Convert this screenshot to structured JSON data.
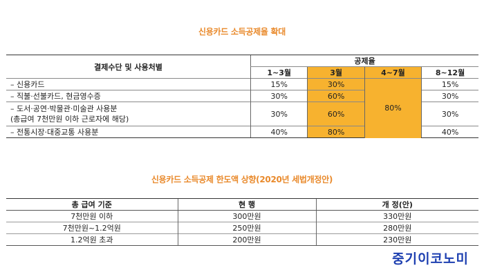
{
  "table1": {
    "title": "신용카드 소득공제율 확대",
    "header_left": "결제수단 및 사용처별",
    "header_group": "공제율",
    "periods": [
      "1~3월",
      "3월",
      "4~7월",
      "8~12월"
    ],
    "merged_rate_4_7": "80%",
    "rows": [
      {
        "label": "– 신용카드",
        "v1": "15%",
        "v2": "30%",
        "v4": "15%"
      },
      {
        "label": "– 직불·선불카드, 현금영수증",
        "v1": "30%",
        "v2": "60%",
        "v4": "30%"
      },
      {
        "label": "– 도서·공연·박물관·미술관 사용분",
        "label2": "(총급여 7천만원 이하 근로자에 해당)",
        "v1": "30%",
        "v2": "60%",
        "v4": "30%"
      },
      {
        "label": "– 전통시장·대중교통 사용분",
        "v1": "40%",
        "v2": "80%",
        "v4": "40%"
      }
    ],
    "highlight_color": "#f7b22f"
  },
  "table2": {
    "title": "신용카드 소득공제 한도액 상향(2020년 세법개정안)",
    "headers": [
      "총 급여 기준",
      "현 행",
      "개 정(안)"
    ],
    "rows": [
      [
        "7천만원 이하",
        "300만원",
        "330만원"
      ],
      [
        "7천만원~1.2억원",
        "250만원",
        "280만원"
      ],
      [
        "1.2억원 초과",
        "200만원",
        "230만원"
      ]
    ]
  },
  "logo": {
    "text": "중기이코노미",
    "color": "#1d3fb0"
  },
  "title_color": "#e98a2c"
}
